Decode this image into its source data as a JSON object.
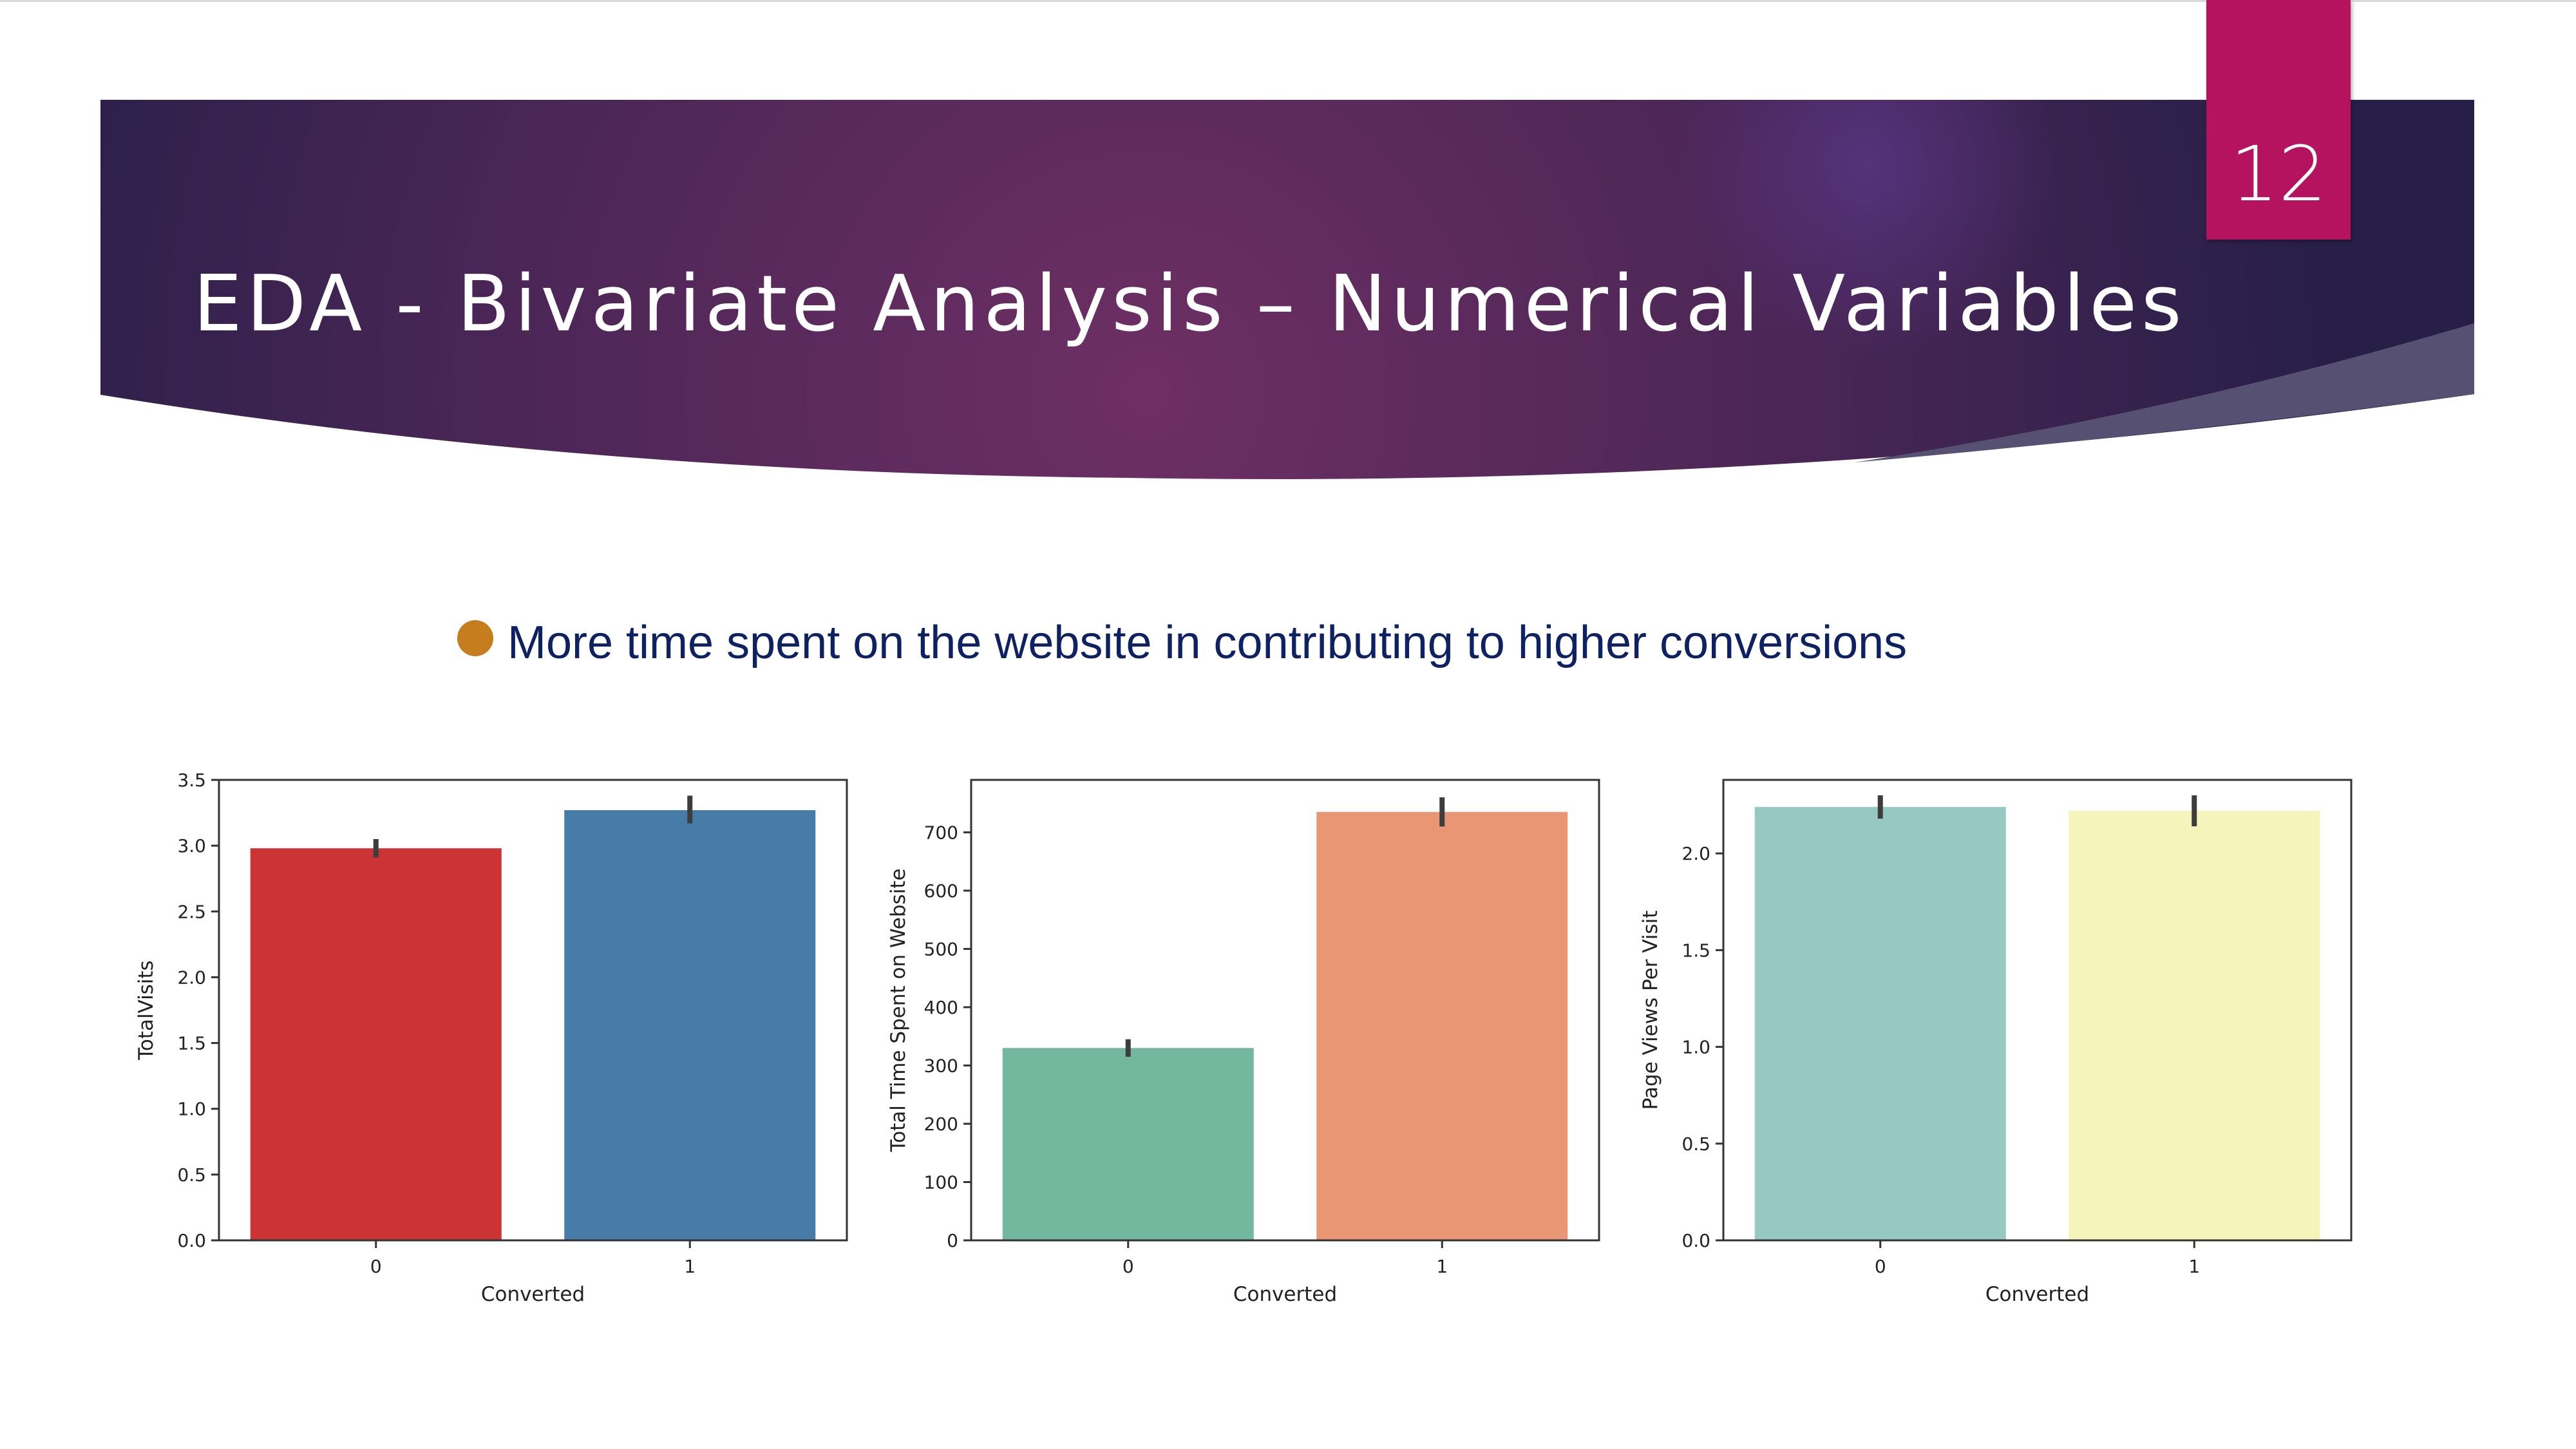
{
  "slide": {
    "number": "12",
    "title": "EDA - Bivariate Analysis – Numerical Variables",
    "bullet": "More time spent on the website in contributing to higher conversions"
  },
  "colors": {
    "banner_dark": "#271f48",
    "banner_mid": "#6e2f64",
    "slide_number_box": "#b5135f",
    "bullet_dot": "#c67d1e",
    "bullet_text": "#0e2263"
  },
  "chart_data": [
    {
      "type": "bar",
      "categories": [
        "0",
        "1"
      ],
      "values": [
        2.98,
        3.27
      ],
      "error_bars": [
        [
          2.91,
          3.05
        ],
        [
          3.17,
          3.38
        ]
      ],
      "bar_colors": [
        "#cb3335",
        "#477ca8"
      ],
      "xlabel": "Converted",
      "ylabel": "TotalVisits",
      "ylim": [
        0,
        3.5
      ],
      "yticks": [
        0,
        0.5,
        1.0,
        1.5,
        2.0,
        2.5,
        3.0,
        3.5
      ],
      "ytick_labels": [
        "0.0",
        "0.5",
        "1.0",
        "1.5",
        "2.0",
        "2.5",
        "3.0",
        "3.5"
      ],
      "grid": false
    },
    {
      "type": "bar",
      "categories": [
        "0",
        "1"
      ],
      "values": [
        330,
        735
      ],
      "error_bars": [
        [
          315,
          345
        ],
        [
          710,
          760
        ]
      ],
      "bar_colors": [
        "#74b79f",
        "#e99675"
      ],
      "xlabel": "Converted",
      "ylabel": "Total Time Spent on Website",
      "ylim": [
        0,
        790
      ],
      "yticks": [
        0,
        100,
        200,
        300,
        400,
        500,
        600,
        700
      ],
      "ytick_labels": [
        "0",
        "100",
        "200",
        "300",
        "400",
        "500",
        "600",
        "700"
      ],
      "grid": false
    },
    {
      "type": "bar",
      "categories": [
        "0",
        "1"
      ],
      "values": [
        2.24,
        2.22
      ],
      "error_bars": [
        [
          2.18,
          2.3
        ],
        [
          2.14,
          2.3
        ]
      ],
      "bar_colors": [
        "#96c9c2",
        "#f4f4bb"
      ],
      "xlabel": "Converted",
      "ylabel": "Page Views Per Visit",
      "ylim": [
        0,
        2.38
      ],
      "yticks": [
        0,
        0.5,
        1.0,
        1.5,
        2.0
      ],
      "ytick_labels": [
        "0.0",
        "0.5",
        "1.0",
        "1.5",
        "2.0"
      ],
      "grid": false
    }
  ]
}
